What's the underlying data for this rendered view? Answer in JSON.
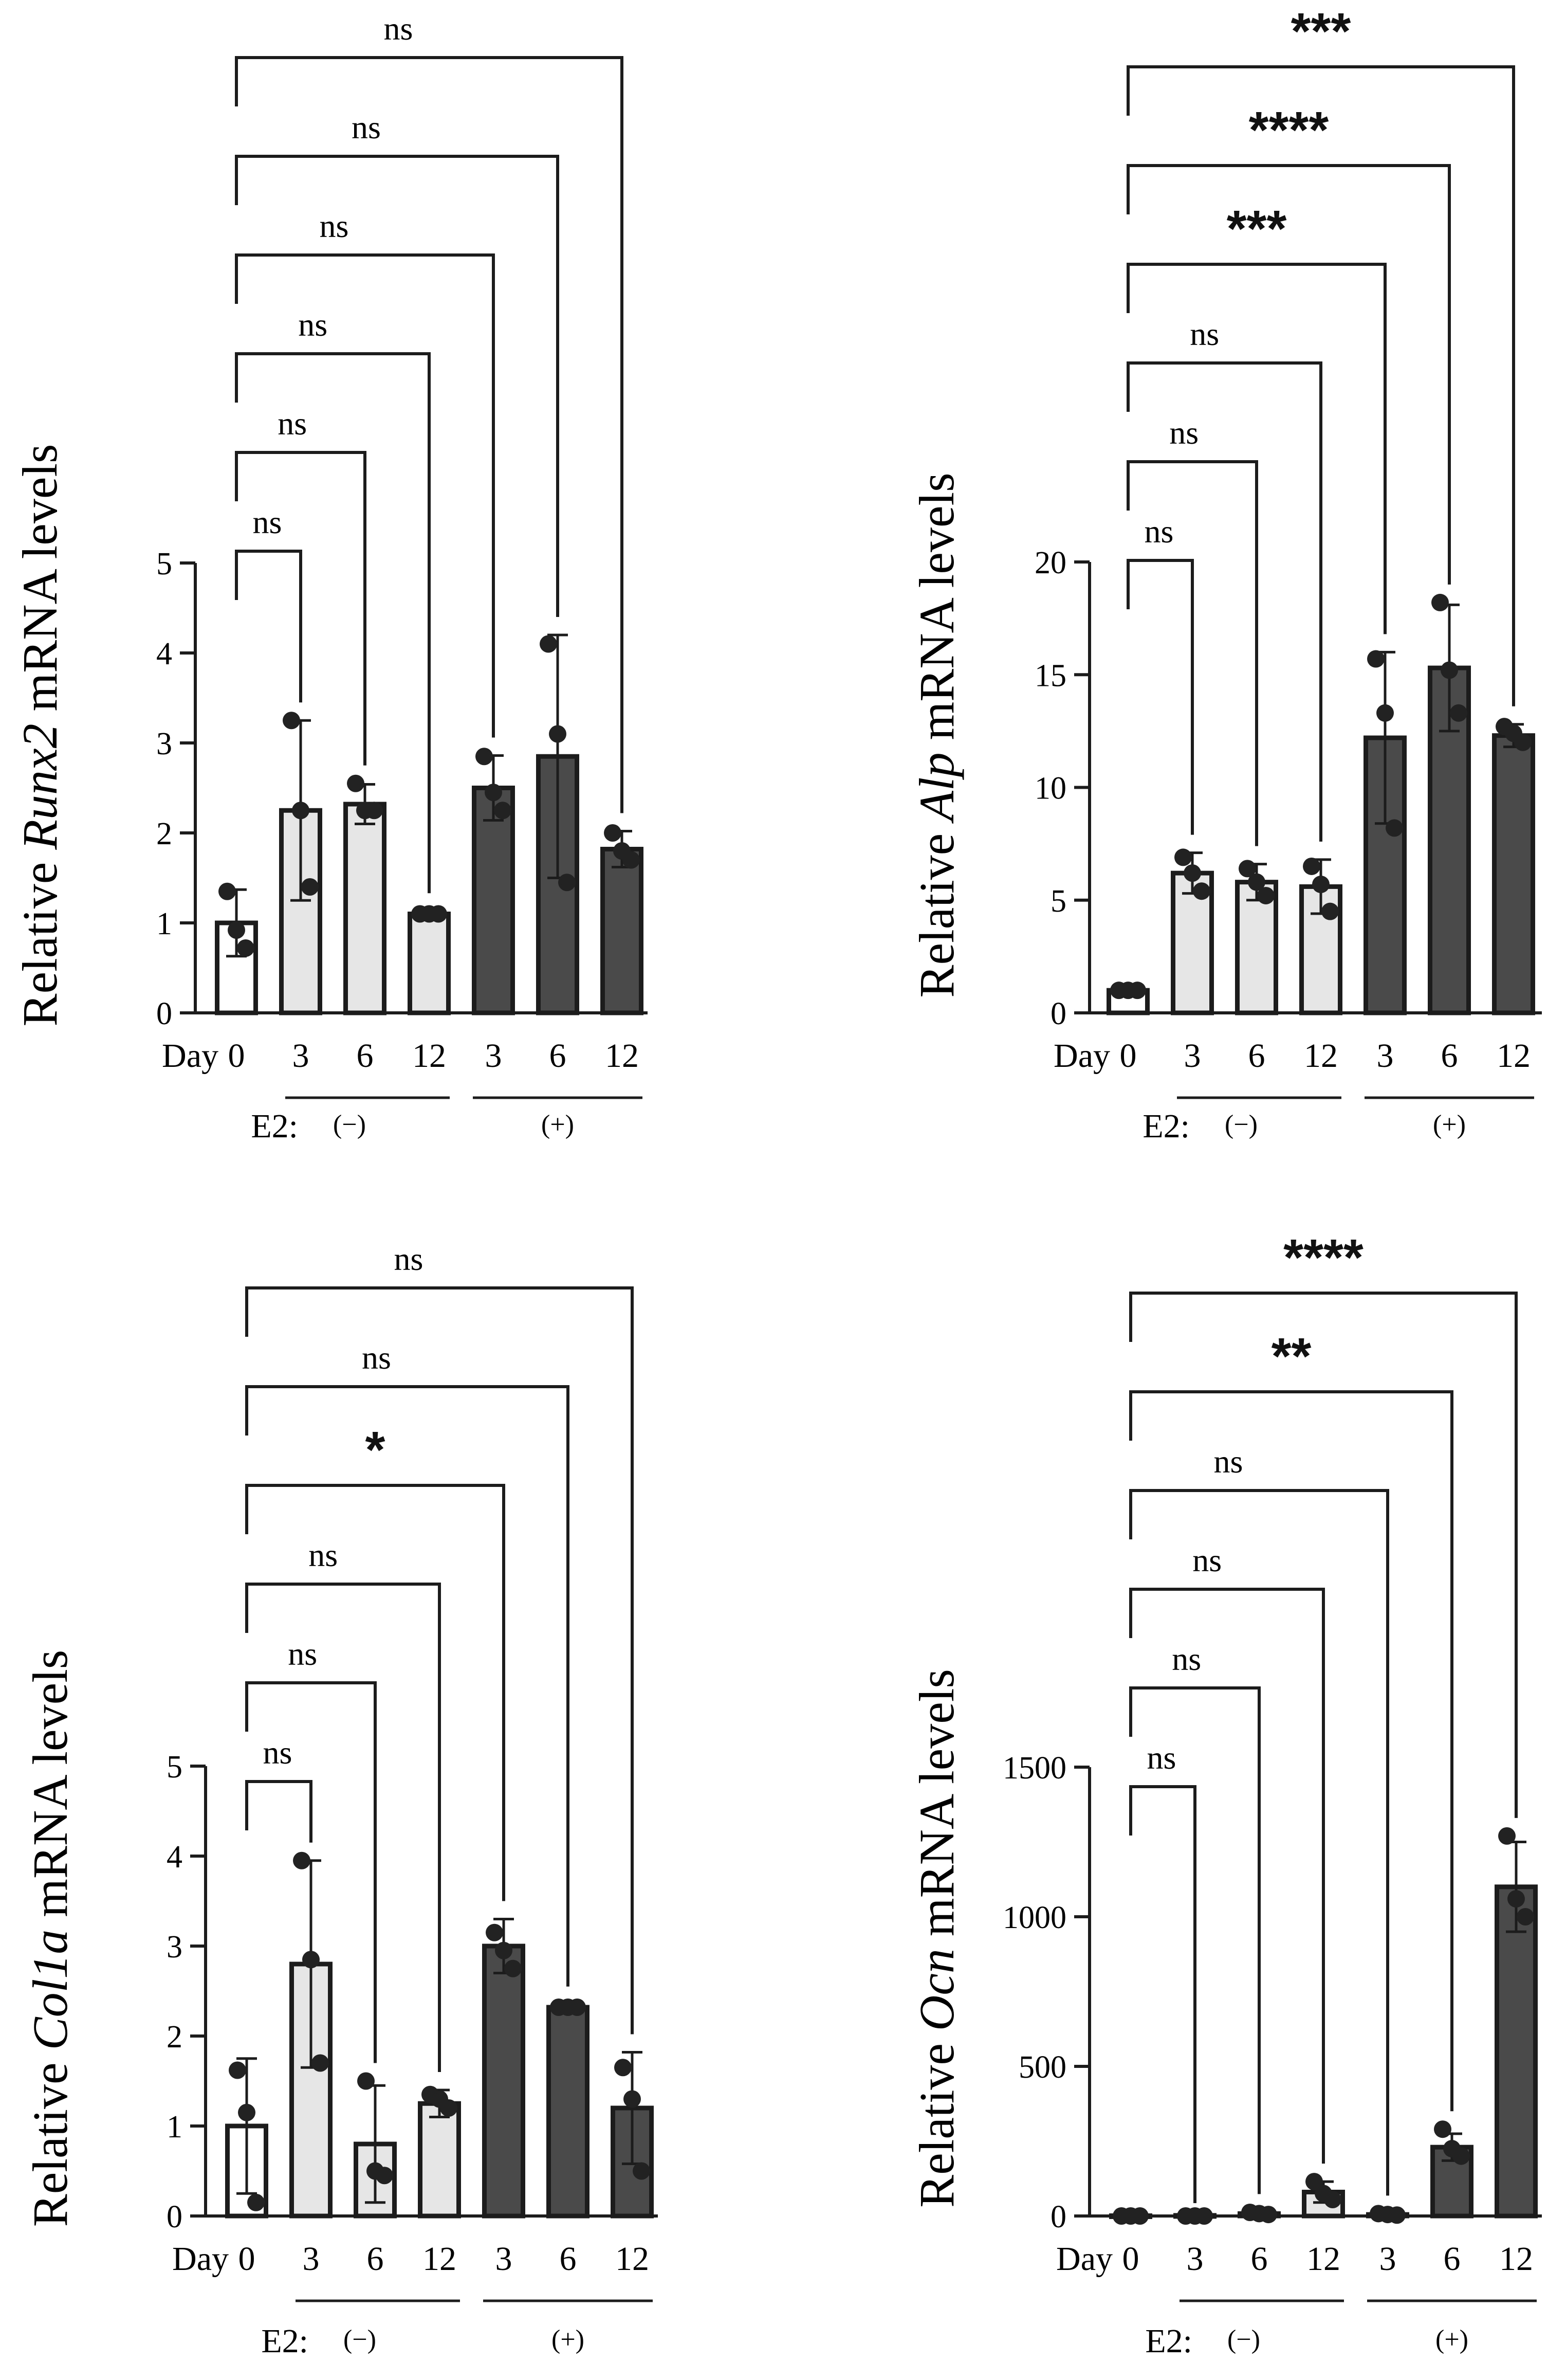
{
  "colors": {
    "ctrl": "#ffffff",
    "minus": "#e6e6e6",
    "plus": "#4a4a4a",
    "line": "#1c1c1c",
    "dot": "#222222"
  },
  "chart_data": [
    {
      "type": "bar",
      "gene": "Runx2",
      "ylabel_prefix": "Relative",
      "ylabel_suffix": "mRNA levels",
      "ylim": [
        0,
        5
      ],
      "yticks": [
        "0",
        "1",
        "2",
        "3",
        "4",
        "5"
      ],
      "day_label": "Day",
      "categories": [
        "0",
        "3",
        "6",
        "12",
        "3",
        "6",
        "12"
      ],
      "groups": [
        "ctrl",
        "minus",
        "minus",
        "minus",
        "plus",
        "plus",
        "plus"
      ],
      "e2_label": "E2:",
      "e2_minus": "(−)",
      "e2_plus": "(+)",
      "values": [
        1.0,
        2.25,
        2.32,
        1.1,
        2.5,
        2.85,
        1.82
      ],
      "errors": [
        0.37,
        1.0,
        0.22,
        0.03,
        0.36,
        1.35,
        0.2
      ],
      "points": [
        [
          1.35,
          0.92,
          0.72
        ],
        [
          3.25,
          2.25,
          1.4
        ],
        [
          2.55,
          2.25,
          2.25
        ],
        [
          1.1,
          1.1,
          1.1
        ],
        [
          2.85,
          2.45,
          2.25
        ],
        [
          4.1,
          3.1,
          1.45
        ],
        [
          2.0,
          1.8,
          1.7
        ]
      ],
      "comparisons": [
        "ns",
        "ns",
        "ns",
        "ns",
        "ns",
        "ns"
      ]
    },
    {
      "type": "bar",
      "gene": "Alp",
      "ylabel_prefix": "Relative",
      "ylabel_suffix": "mRNA levels",
      "ylim": [
        0,
        20
      ],
      "yticks": [
        "0",
        "5",
        "10",
        "15",
        "20"
      ],
      "day_label": "Day",
      "categories": [
        "0",
        "3",
        "6",
        "12",
        "3",
        "6",
        "12"
      ],
      "groups": [
        "ctrl",
        "minus",
        "minus",
        "minus",
        "plus",
        "plus",
        "plus"
      ],
      "e2_label": "E2:",
      "e2_minus": "(−)",
      "e2_plus": "(+)",
      "values": [
        1.0,
        6.2,
        5.8,
        5.6,
        12.2,
        15.3,
        12.3
      ],
      "errors": [
        0.12,
        0.9,
        0.8,
        1.2,
        3.8,
        2.8,
        0.5
      ],
      "points": [
        [
          1.0,
          1.0,
          1.0
        ],
        [
          6.9,
          6.2,
          5.4
        ],
        [
          6.4,
          5.8,
          5.2
        ],
        [
          6.5,
          5.7,
          4.5
        ],
        [
          15.7,
          13.3,
          8.2
        ],
        [
          18.2,
          15.2,
          13.3
        ],
        [
          12.7,
          12.4,
          12.0
        ]
      ],
      "comparisons": [
        "ns",
        "ns",
        "ns",
        "***",
        "****",
        "***"
      ]
    },
    {
      "type": "bar",
      "gene": "Col1a",
      "ylabel_prefix": "Relative",
      "ylabel_suffix": "mRNA levels",
      "ylim": [
        0,
        5
      ],
      "yticks": [
        "0",
        "1",
        "2",
        "3",
        "4",
        "5"
      ],
      "day_label": "Day",
      "categories": [
        "0",
        "3",
        "6",
        "12",
        "3",
        "6",
        "12"
      ],
      "groups": [
        "ctrl",
        "minus",
        "minus",
        "minus",
        "plus",
        "plus",
        "plus"
      ],
      "e2_label": "E2:",
      "e2_minus": "(−)",
      "e2_plus": "(+)",
      "values": [
        1.0,
        2.8,
        0.8,
        1.25,
        3.0,
        2.32,
        1.2
      ],
      "errors": [
        0.75,
        1.15,
        0.65,
        0.15,
        0.3,
        0.03,
        0.62
      ],
      "points": [
        [
          1.62,
          1.15,
          0.15
        ],
        [
          3.95,
          2.85,
          1.7
        ],
        [
          1.5,
          0.5,
          0.45
        ],
        [
          1.35,
          1.3,
          1.2
        ],
        [
          3.15,
          2.95,
          2.75
        ],
        [
          2.32,
          2.32,
          2.32
        ],
        [
          1.65,
          1.3,
          0.5
        ]
      ],
      "comparisons": [
        "ns",
        "ns",
        "ns",
        "*",
        "ns",
        "ns"
      ]
    },
    {
      "type": "bar",
      "gene": "Ocn",
      "ylabel_prefix": "Relative",
      "ylabel_suffix": "mRNA levels",
      "ylim": [
        0,
        1500
      ],
      "yticks": [
        "0",
        "500",
        "1000",
        "1500"
      ],
      "day_label": "Day",
      "categories": [
        "0",
        "3",
        "6",
        "12",
        "3",
        "6",
        "12"
      ],
      "groups": [
        "ctrl",
        "minus",
        "minus",
        "minus",
        "plus",
        "plus",
        "plus"
      ],
      "e2_label": "E2:",
      "e2_minus": "(−)",
      "e2_plus": "(+)",
      "values": [
        1,
        2,
        8,
        80,
        5,
        230,
        1100
      ],
      "errors": [
        0,
        0,
        5,
        35,
        2,
        45,
        150
      ],
      "points": [
        [
          0,
          0,
          0
        ],
        [
          0,
          0,
          0
        ],
        [
          12,
          8,
          5
        ],
        [
          115,
          75,
          55
        ],
        [
          8,
          5,
          3
        ],
        [
          290,
          225,
          200
        ],
        [
          1270,
          1060,
          1000
        ]
      ],
      "comparisons": [
        "ns",
        "ns",
        "ns",
        "ns",
        "**",
        "****"
      ]
    }
  ]
}
